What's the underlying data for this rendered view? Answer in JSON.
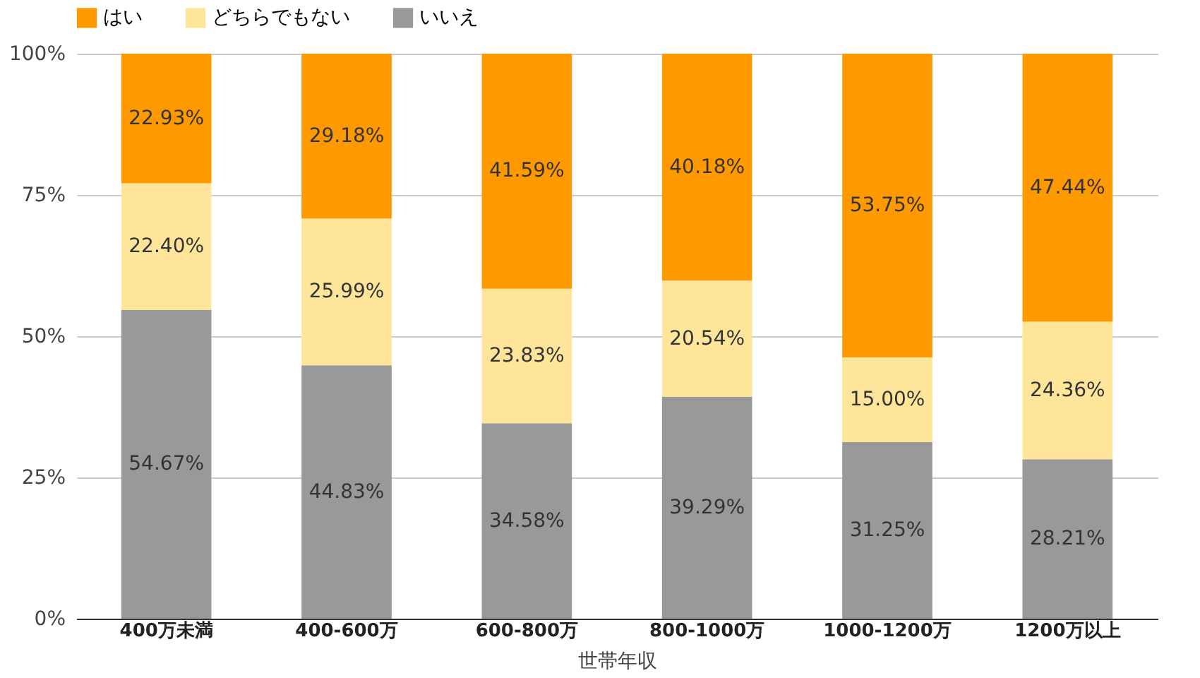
{
  "chart_data": {
    "type": "bar",
    "stacked": true,
    "xlabel": "世帯年収",
    "categories": [
      "400万未満",
      "400-600万",
      "600-800万",
      "800-1000万",
      "1000-1200万",
      "1200万以上"
    ],
    "series": [
      {
        "name": "いいえ",
        "color": "#999999",
        "values": [
          54.67,
          44.83,
          34.58,
          39.29,
          31.25,
          28.21
        ],
        "value_labels": [
          "54.67%",
          "44.83%",
          "34.58%",
          "39.29%",
          "31.25%",
          "28.21%"
        ]
      },
      {
        "name": "どちらでもない",
        "color": "#ffe599",
        "values": [
          22.4,
          25.99,
          23.83,
          20.54,
          15.0,
          24.36
        ],
        "value_labels": [
          "22.40%",
          "25.99%",
          "23.83%",
          "20.54%",
          "15.00%",
          "24.36%"
        ]
      },
      {
        "name": "はい",
        "color": "#ff9900",
        "values": [
          22.93,
          29.18,
          41.59,
          40.18,
          53.75,
          47.44
        ],
        "value_labels": [
          "22.93%",
          "29.18%",
          "41.59%",
          "40.18%",
          "53.75%",
          "47.44%"
        ]
      }
    ],
    "ylim": [
      0,
      100
    ],
    "yticks": [
      {
        "value": 0,
        "label": "0%"
      },
      {
        "value": 25,
        "label": "25%"
      },
      {
        "value": 50,
        "label": "50%"
      },
      {
        "value": 75,
        "label": "75%"
      },
      {
        "value": 100,
        "label": "100%"
      }
    ],
    "grid": "y",
    "legend": "top"
  }
}
